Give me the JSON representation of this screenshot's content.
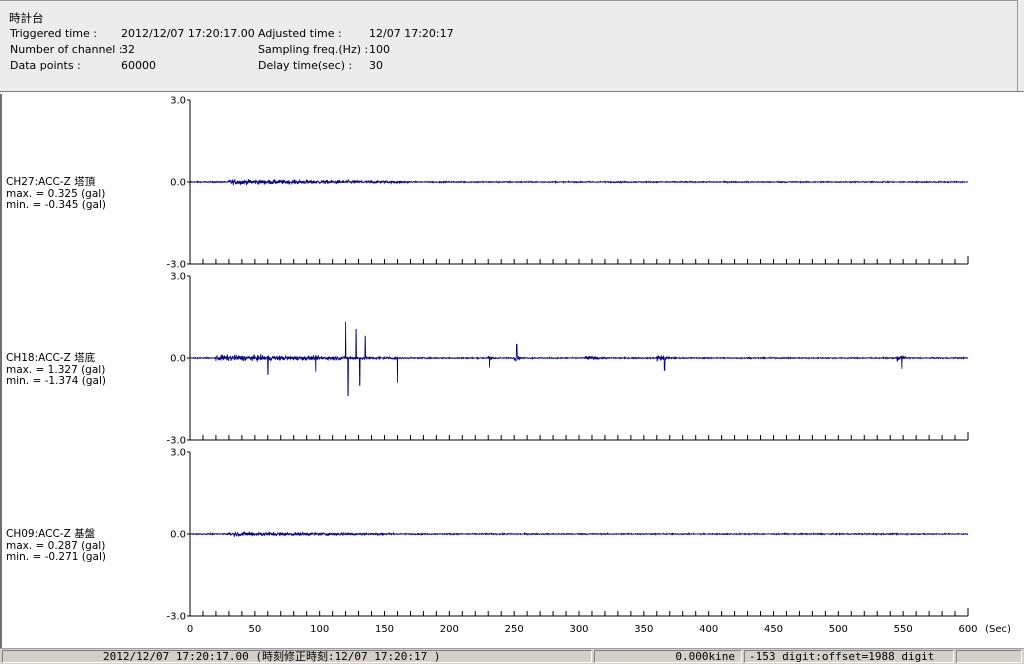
{
  "header": {
    "title": "時計台",
    "triggered_label": "Triggered time :",
    "triggered_value": "2012/12/07 17:20:17.00",
    "channels_label": "Number of channel :",
    "channels_value": "32",
    "datapoints_label": "Data points :",
    "datapoints_value": "60000",
    "adjusted_label": "Adjusted time :",
    "adjusted_value": "12/07 17:20:17",
    "sampling_label": "Sampling freq.(Hz) :",
    "sampling_value": "100",
    "delay_label": "Delay time(sec) :",
    "delay_value": "30"
  },
  "channels": [
    {
      "name": "CH27:ACC-Z 塔頂",
      "max": "max. = 0.325 (gal)",
      "min": "min. = -0.345 (gal)"
    },
    {
      "name": "CH18:ACC-Z 塔底",
      "max": "max. = 1.327 (gal)",
      "min": "min. = -1.374 (gal)"
    },
    {
      "name": "CH09:ACC-Z 基盤",
      "max": "max. = 0.287 (gal)",
      "min": "min. = -0.271 (gal)"
    }
  ],
  "chart_data": {
    "type": "line",
    "xlabel": "(Sec)",
    "xlim": [
      0,
      600
    ],
    "x_ticks": [
      "0",
      "50",
      "100",
      "150",
      "200",
      "250",
      "300",
      "350",
      "400",
      "450",
      "500",
      "550",
      "600"
    ],
    "y_ticks": [
      "3.0",
      "0.0",
      "-3.0"
    ],
    "ylim": [
      -3.0,
      3.0
    ],
    "line_color": "#000080",
    "series": [
      {
        "name": "CH27:ACC-Z 塔頂",
        "max": 0.325,
        "min": -0.345,
        "bursts": [
          [
            30,
            170,
            0.3
          ]
        ],
        "spikes": []
      },
      {
        "name": "CH18:ACC-Z 塔底",
        "max": 1.327,
        "min": -1.374,
        "bursts": [
          [
            20,
            160,
            0.35
          ],
          [
            230,
            235,
            0.3
          ],
          [
            250,
            255,
            0.3
          ],
          [
            305,
            320,
            0.25
          ],
          [
            360,
            370,
            0.4
          ],
          [
            545,
            552,
            0.4
          ]
        ],
        "spikes": [
          [
            120,
            1.327
          ],
          [
            122,
            -1.374
          ],
          [
            128,
            1.05
          ],
          [
            131,
            -1.0
          ],
          [
            135,
            0.8
          ],
          [
            160,
            -0.9
          ],
          [
            60,
            -0.6
          ],
          [
            97,
            -0.5
          ],
          [
            231,
            -0.35
          ],
          [
            252,
            0.5
          ],
          [
            366,
            -0.45
          ],
          [
            549,
            -0.4
          ]
        ]
      },
      {
        "name": "CH09:ACC-Z 基盤",
        "max": 0.287,
        "min": -0.271,
        "bursts": [
          [
            30,
            160,
            0.25
          ]
        ],
        "spikes": []
      }
    ]
  },
  "status": {
    "datetime": "2012/12/07 17:20:17.00  (時刻修正時刻:12/07 17:20:17  )",
    "kine": "0.000kine",
    "digit": "-153 digit:offset=1988 digit",
    "extra": ""
  }
}
